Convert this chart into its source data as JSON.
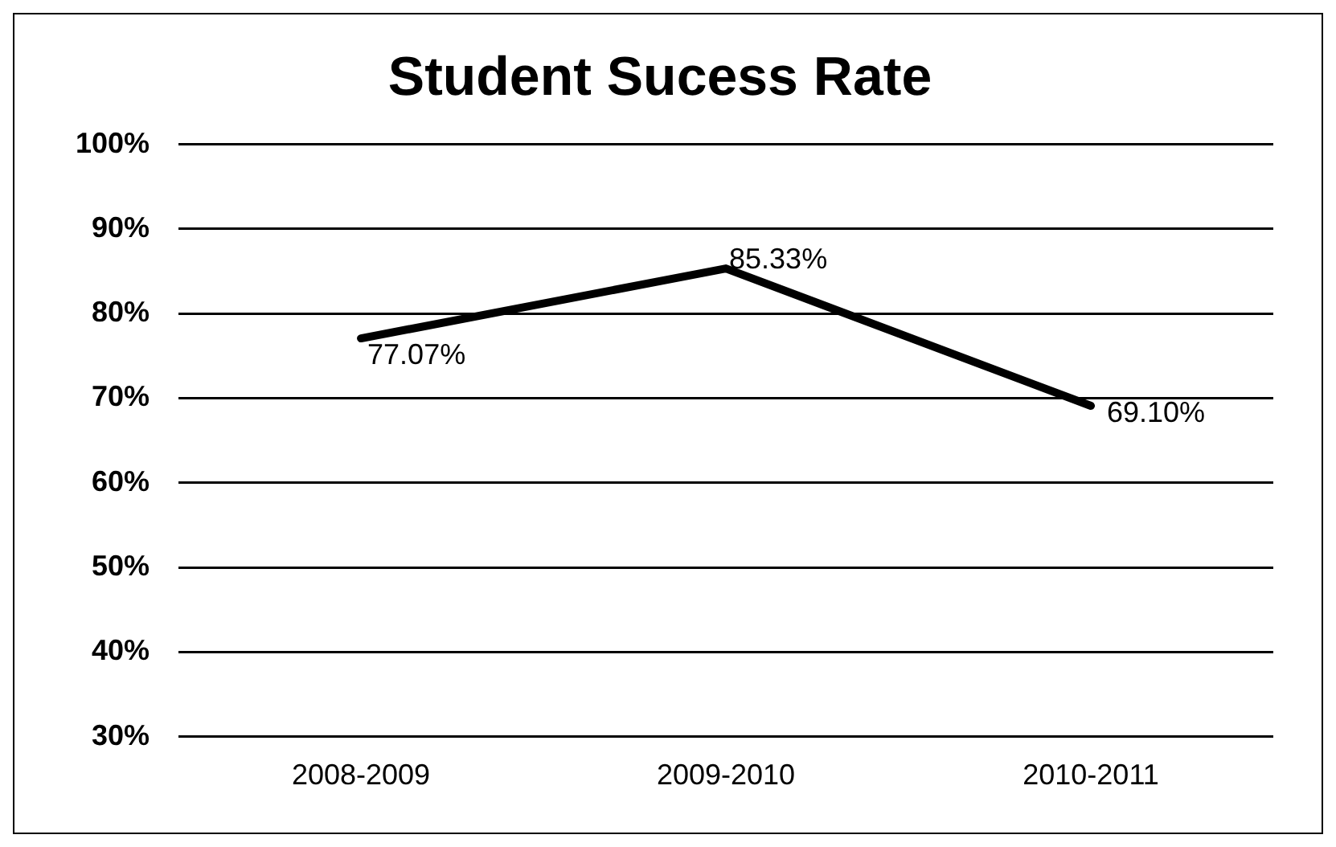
{
  "chart_data": {
    "type": "line",
    "title": "Student Sucess Rate",
    "categories": [
      "2008-2009",
      "2009-2010",
      "2010-2011"
    ],
    "series": [
      {
        "color": "#000000",
        "values": [
          77.07,
          85.33,
          69.1
        ],
        "value_labels": [
          "77.07%",
          "85.33%",
          "69.10%"
        ]
      }
    ],
    "ylim": [
      30,
      100
    ],
    "yticks": [
      {
        "value": 30,
        "label": "30%"
      },
      {
        "value": 40,
        "label": "40%"
      },
      {
        "value": 50,
        "label": "50%"
      },
      {
        "value": 60,
        "label": "60%"
      },
      {
        "value": 70,
        "label": "70%"
      },
      {
        "value": 80,
        "label": "80%"
      },
      {
        "value": 90,
        "label": "90%"
      },
      {
        "value": 100,
        "label": "100%"
      }
    ],
    "grid": "y",
    "legend": false,
    "marker": "none",
    "line_style": "solid"
  }
}
